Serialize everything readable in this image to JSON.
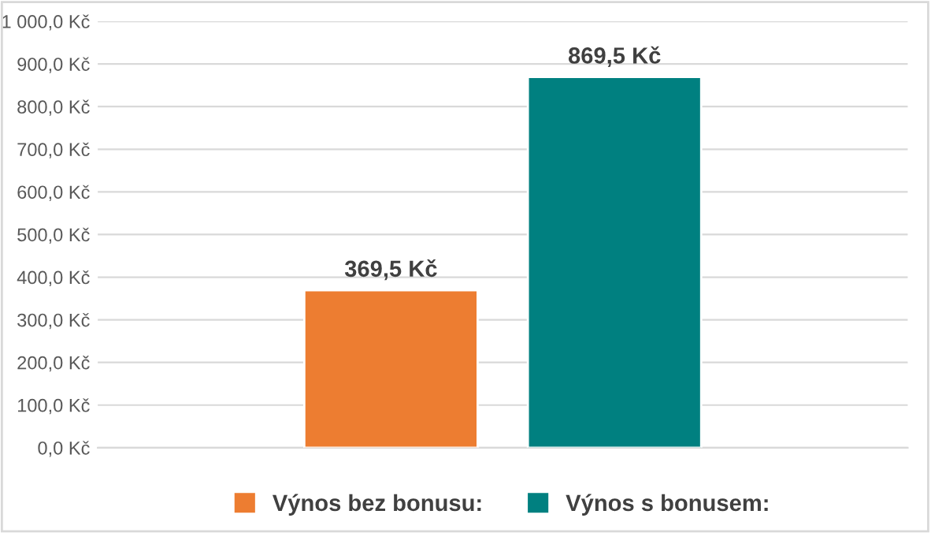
{
  "chart_data": {
    "type": "bar",
    "categories": [
      null
    ],
    "series": [
      {
        "name": "Výnos bez bonusu:",
        "color": "#ed7d31",
        "values": [
          369.5
        ],
        "value_labels": [
          "369,5 Kč"
        ]
      },
      {
        "name": "Výnos s bonusem:",
        "color": "#008080",
        "values": [
          869.5
        ],
        "value_labels": [
          "869,5 Kč"
        ]
      }
    ],
    "ylim": [
      0,
      1000
    ],
    "yticks": [
      {
        "value": 0,
        "label": "0,0 Kč"
      },
      {
        "value": 100,
        "label": "100,0 Kč"
      },
      {
        "value": 200,
        "label": "200,0 Kč"
      },
      {
        "value": 300,
        "label": "300,0 Kč"
      },
      {
        "value": 400,
        "label": "400,0 Kč"
      },
      {
        "value": 500,
        "label": "500,0 Kč"
      },
      {
        "value": 600,
        "label": "600,0 Kč"
      },
      {
        "value": 700,
        "label": "700,0 Kč"
      },
      {
        "value": 800,
        "label": "800,0 Kč"
      },
      {
        "value": 900,
        "label": "900,0 Kč"
      },
      {
        "value": 1000,
        "label": "1 000,0 Kč"
      }
    ],
    "grid": "y",
    "legend": "bottom"
  }
}
